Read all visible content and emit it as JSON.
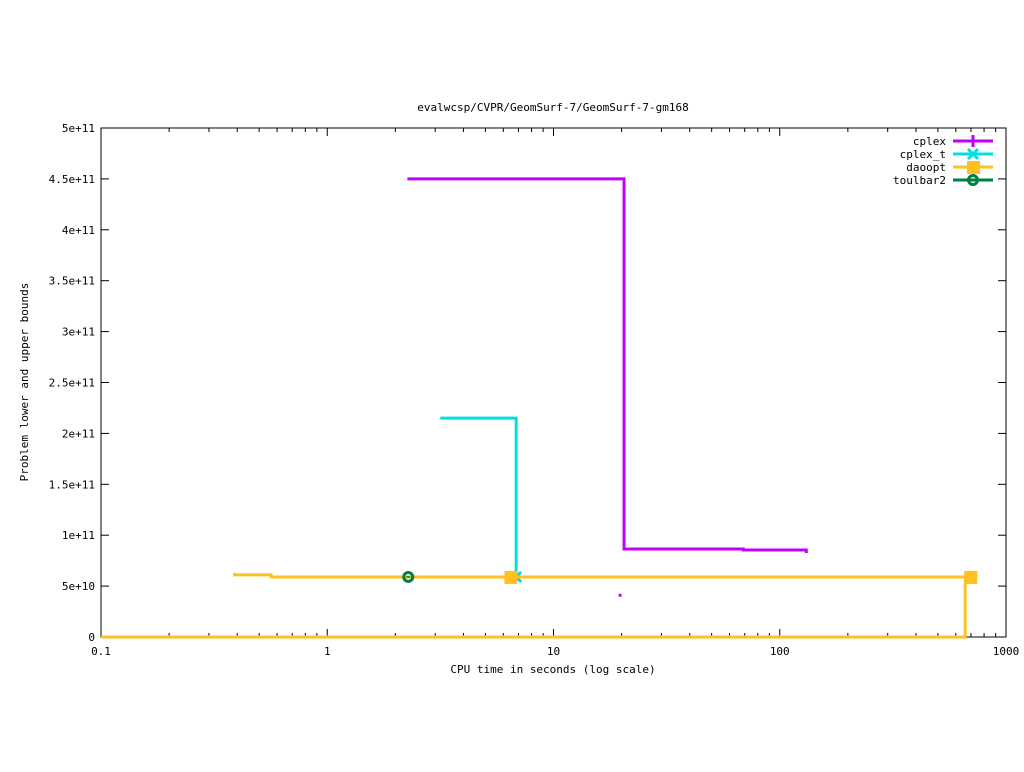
{
  "chart_data": {
    "type": "line",
    "title": "evalwcsp/CVPR/GeomSurf-7/GeomSurf-7-gm168",
    "xlabel": "CPU time in seconds (log scale)",
    "ylabel": "Problem lower and upper bounds",
    "xscale": "log",
    "xlim": [
      0.1,
      1000
    ],
    "ylim": [
      0,
      500000000000.0
    ],
    "grid": false,
    "legend_placement": "top-right",
    "xticks": [
      {
        "v": 0.1,
        "label": "0.1"
      },
      {
        "v": 1,
        "label": "1"
      },
      {
        "v": 10,
        "label": "10"
      },
      {
        "v": 100,
        "label": "100"
      },
      {
        "v": 1000,
        "label": "1000"
      }
    ],
    "yticks": [
      {
        "v": 0,
        "label": "0"
      },
      {
        "v": 50000000000.0,
        "label": "5e+10"
      },
      {
        "v": 100000000000.0,
        "label": "1e+11"
      },
      {
        "v": 150000000000.0,
        "label": "1.5e+11"
      },
      {
        "v": 200000000000.0,
        "label": "2e+11"
      },
      {
        "v": 250000000000.0,
        "label": "2.5e+11"
      },
      {
        "v": 300000000000.0,
        "label": "3e+11"
      },
      {
        "v": 350000000000.0,
        "label": "3.5e+11"
      },
      {
        "v": 400000000000.0,
        "label": "4e+11"
      },
      {
        "v": 450000000000.0,
        "label": "4.5e+11"
      },
      {
        "v": 500000000000.0,
        "label": "5e+11"
      }
    ],
    "series": [
      {
        "name": "cplex",
        "color": "#c000ff",
        "marker": "plus",
        "upper": [
          [
            2.26,
            450000000000.0
          ],
          [
            20.5,
            450000000000.0
          ],
          [
            20.5,
            86400000000.0
          ],
          [
            69,
            86400000000.0
          ],
          [
            69,
            85500000000.0
          ],
          [
            131,
            85500000000.0
          ],
          [
            131,
            82500000000.0
          ]
        ],
        "lower": [
          [
            19.7,
            41000000000.0
          ]
        ],
        "markers": []
      },
      {
        "name": "cplex_t",
        "color": "#00e0e0",
        "marker": "x",
        "upper": [
          [
            3.16,
            215000000000.0
          ],
          [
            6.84,
            215000000000.0
          ],
          [
            6.84,
            59000000000.0
          ]
        ],
        "lower": [],
        "markers": [
          [
            6.84,
            59000000000.0
          ]
        ]
      },
      {
        "name": "daoopt",
        "color": "#ffc020",
        "marker": "square",
        "upper": [
          [
            0.39,
            63000000000.0
          ],
          [
            0.39,
            61000000000.0
          ],
          [
            0.565,
            61000000000.0
          ],
          [
            0.565,
            59000000000.0
          ],
          [
            700,
            59000000000.0
          ]
        ],
        "lower": [
          [
            0.1,
            0
          ],
          [
            660,
            0
          ],
          [
            660,
            55000000000.0
          ],
          [
            700,
            55000000000.0
          ]
        ],
        "markers": [
          [
            6.45,
            59000000000.0
          ],
          [
            695,
            59000000000.0
          ]
        ]
      },
      {
        "name": "toulbar2",
        "color": "#008040",
        "marker": "circle",
        "upper": [],
        "lower": [],
        "markers": [
          [
            2.28,
            59000000000.0
          ]
        ]
      }
    ]
  }
}
